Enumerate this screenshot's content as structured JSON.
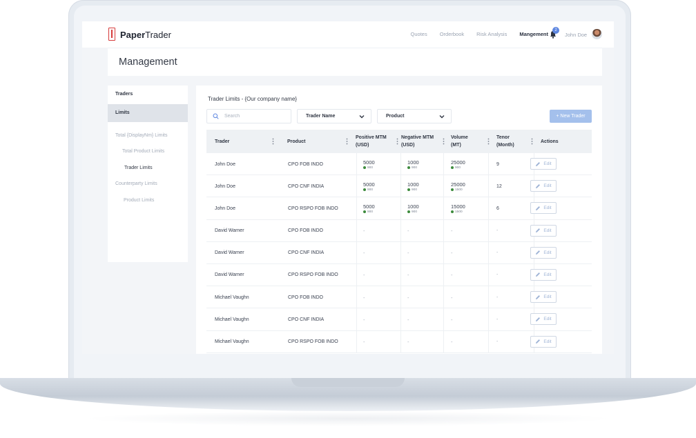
{
  "app": {
    "logo_bold": "Paper",
    "logo_light": "Trader"
  },
  "nav": [
    {
      "label": "Quotes",
      "active": false
    },
    {
      "label": "Orderbook",
      "active": false
    },
    {
      "label": "Risk Analysis",
      "active": false
    },
    {
      "label": "Mangement",
      "active": true
    }
  ],
  "notifications": {
    "count": "2",
    "icon": "bell-icon"
  },
  "user": {
    "name": "John Doe"
  },
  "page": {
    "title": "Management"
  },
  "sidebar": {
    "traders": "Traders",
    "limits": "Limits",
    "total_limits": "Total {DisplayNm} Limits",
    "total_product_limits": "Total Product Limits",
    "trader_limits": "Trader Limits",
    "counterparty_limits": "Counterparty Limits",
    "product_limits": "Product Limits"
  },
  "panel": {
    "title": "Trader Limits  - {Our company name}",
    "search_placeholder": "Search",
    "filter_trader": "Trader Name",
    "filter_product": "Product",
    "new_trader_button": "+ New Trader",
    "accent_color": "#a4c0ec"
  },
  "table": {
    "headers": {
      "trader": "Trader",
      "product": "Product",
      "pos_mtm_1": "Positive MTM",
      "pos_mtm_2": "(USD)",
      "neg_mtm_1": "Negative  MTM",
      "neg_mtm_2": "(USD)",
      "volume_1": "Volume",
      "volume_2": "(MT)",
      "tenor_1": "Tenor",
      "tenor_2": "(Month)",
      "actions": "Actions"
    },
    "edit_label": "Edit",
    "dash": "-",
    "rows": [
      {
        "trader": "John Doe",
        "product": "CPO FOB INDO",
        "pos": "5000",
        "pos_sub": "900",
        "neg": "1000",
        "neg_sub": "900",
        "vol": "25000",
        "vol_sub": "900",
        "tenor": "9"
      },
      {
        "trader": "John Doe",
        "product": "CPO CNF INDIA",
        "pos": "5000",
        "pos_sub": "900",
        "neg": "1000",
        "neg_sub": "900",
        "vol": "25000",
        "vol_sub": "1500",
        "tenor": "12"
      },
      {
        "trader": "John Doe",
        "product": "CPO RSPO FOB INDO",
        "pos": "5000",
        "pos_sub": "900",
        "neg": "1000",
        "neg_sub": "900",
        "vol": "15000",
        "vol_sub": "1500",
        "tenor": "6"
      },
      {
        "trader": "David Warner",
        "product": "CPO FOB INDO"
      },
      {
        "trader": "David Warner",
        "product": "CPO CNF INDIA"
      },
      {
        "trader": "David Warner",
        "product": "CPO RSPO FOB INDO"
      },
      {
        "trader": "Michael Vaughn",
        "product": "CPO FOB INDO"
      },
      {
        "trader": "Michael Vaughn",
        "product": "CPO CNF INDIA"
      },
      {
        "trader": "Michael Vaughn",
        "product": "CPO RSPO FOB INDO"
      }
    ]
  }
}
